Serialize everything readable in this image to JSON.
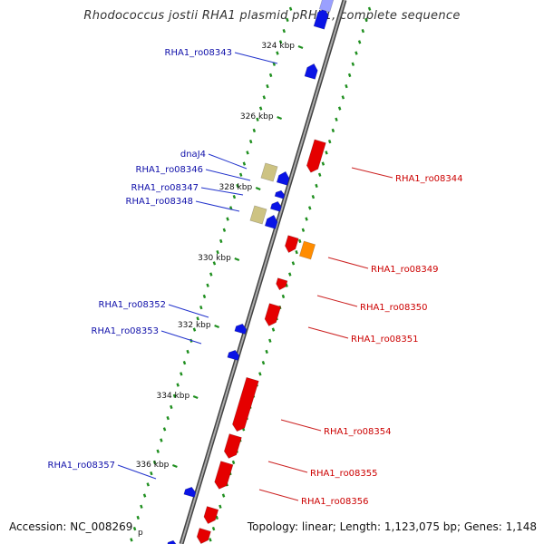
{
  "title": "Rhodococcus jostii RHA1 plasmid pRHL1, complete sequence",
  "footer": {
    "accession": "Accession: NC_008269",
    "summary": "Topology: linear; Length: 1,123,075 bp; Genes: 1,148"
  },
  "colors": {
    "forward_gene": "#e50000",
    "reverse_gene": "#0a14e6",
    "pseudo_gene": "#cdc383",
    "special_gene": "#ff8c00",
    "backbone": "#777777",
    "tick_mark": "#1f8f1f",
    "forward_label": "#cc0000",
    "reverse_label": "#1010aa"
  },
  "scale": {
    "labels": [
      "324 kbp",
      "326 kbp",
      "328 kbp",
      "330 kbp",
      "332 kbp",
      "334 kbp",
      "336 kbp"
    ],
    "partial_label": "p"
  },
  "genes": {
    "reverse": [
      {
        "label": "RHA1_ro08343",
        "type": "reverse"
      },
      {
        "label": "dnaJ4",
        "type": "pseudo"
      },
      {
        "label": "RHA1_ro08346",
        "type": "reverse"
      },
      {
        "label": "RHA1_ro08347",
        "type": "reverse"
      },
      {
        "label": "RHA1_ro08348",
        "type": "pseudo"
      },
      {
        "label": "RHA1_ro08352",
        "type": "reverse"
      },
      {
        "label": "RHA1_ro08353",
        "type": "reverse"
      },
      {
        "label": "RHA1_ro08357",
        "type": "reverse"
      }
    ],
    "forward": [
      {
        "label": "RHA1_ro08344",
        "type": "forward"
      },
      {
        "label": "RHA1_ro08349",
        "type": "special"
      },
      {
        "label": "RHA1_ro08350",
        "type": "forward"
      },
      {
        "label": "RHA1_ro08351",
        "type": "forward"
      },
      {
        "label": "RHA1_ro08354",
        "type": "forward"
      },
      {
        "label": "RHA1_ro08355",
        "type": "forward"
      },
      {
        "label": "RHA1_ro08356",
        "type": "forward"
      }
    ]
  }
}
